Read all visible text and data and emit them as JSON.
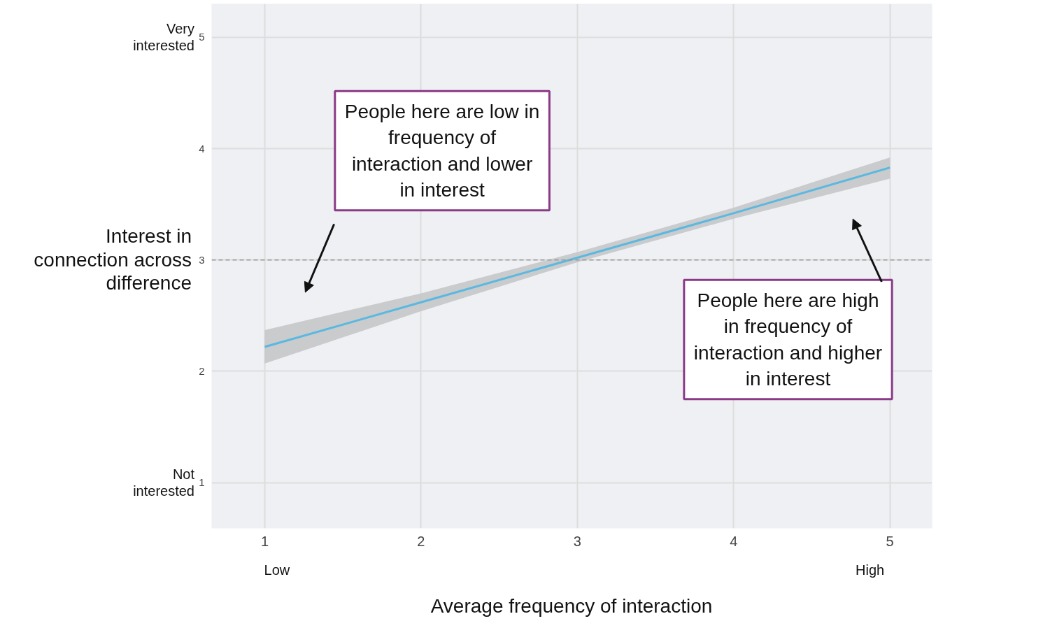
{
  "chart_data": {
    "type": "line",
    "xlabel": "Average frequency of interaction",
    "ylabel": "Interest in connection across difference",
    "xlim": [
      0.66,
      5.27
    ],
    "ylim": [
      0.59,
      5.3
    ],
    "xticks": [
      1,
      2,
      3,
      4,
      5
    ],
    "yticks": [
      1,
      2,
      3,
      4,
      5
    ],
    "grid": true,
    "series": [
      {
        "color": "#5bb8e0",
        "x": [
          1,
          2,
          3,
          4,
          5
        ],
        "values": [
          2.22,
          2.62,
          3.02,
          3.42,
          3.83
        ],
        "lower": [
          2.07,
          2.54,
          2.98,
          3.37,
          3.73
        ],
        "upper": [
          2.37,
          2.7,
          3.07,
          3.47,
          3.92
        ]
      }
    ],
    "ref_lines": [
      {
        "axis": "y",
        "value": 3,
        "color": "#999999",
        "line_style": "dashed"
      }
    ],
    "annotations": [
      "Very interested",
      "Not interested",
      "Low",
      "High",
      "People here are low in frequency of interaction and lower in interest",
      "People here are high in frequency of interaction and higher in interest"
    ]
  }
}
